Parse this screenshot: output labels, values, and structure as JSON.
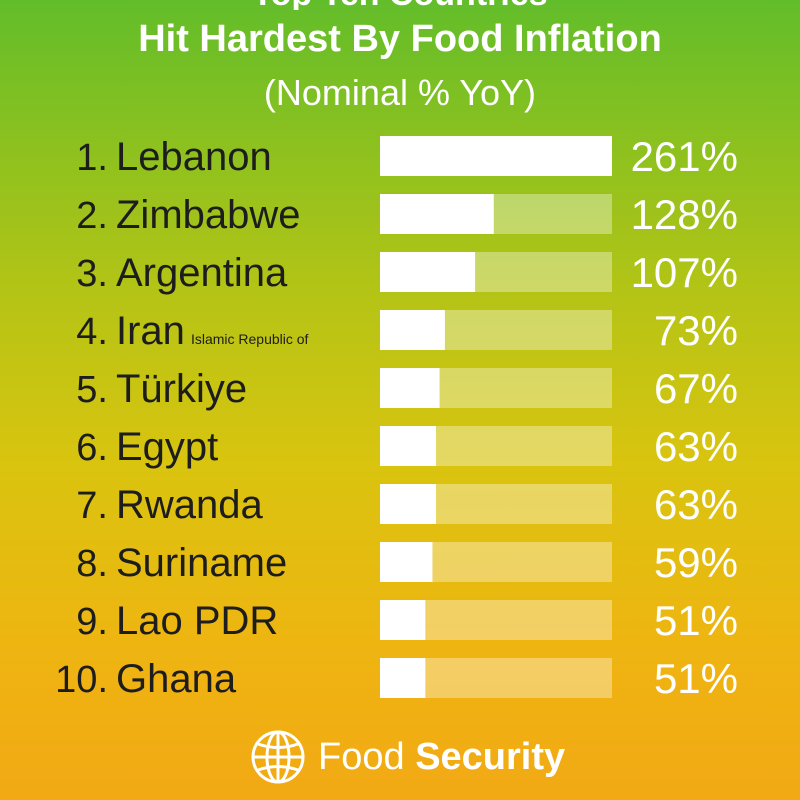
{
  "header": {
    "title_top": "Top Ten Countries",
    "title": "Hit Hardest By Food Inflation",
    "subtitle": "(Nominal % YoY)"
  },
  "colors": {
    "bar_fill": "#ffffff",
    "bar_track": "rgba(255,255,255,0.35)",
    "text_dark": "#1d1d1d",
    "text_light": "#ffffff"
  },
  "chart_data": {
    "type": "bar",
    "orientation": "horizontal",
    "ranks": [
      "1.",
      "2.",
      "3.",
      "4.",
      "5.",
      "6.",
      "7.",
      "8.",
      "9.",
      "10."
    ],
    "categories": [
      "Lebanon",
      "Zimbabwe",
      "Argentina",
      "Iran",
      "Türkiye",
      "Egypt",
      "Rwanda",
      "Suriname",
      "Lao PDR",
      "Ghana"
    ],
    "notes": [
      "",
      "",
      "",
      "Islamic Republic of",
      "",
      "",
      "",
      "",
      "",
      ""
    ],
    "values": [
      261,
      128,
      107,
      73,
      67,
      63,
      63,
      59,
      51,
      51
    ],
    "value_labels": [
      "261%",
      "128%",
      "107%",
      "73%",
      "67%",
      "63%",
      "63%",
      "59%",
      "51%",
      "51%"
    ],
    "xlim": [
      0,
      261
    ]
  },
  "footer": {
    "logo_icon": "globe-icon",
    "brand_light": "Food",
    "brand_bold": "Security"
  }
}
